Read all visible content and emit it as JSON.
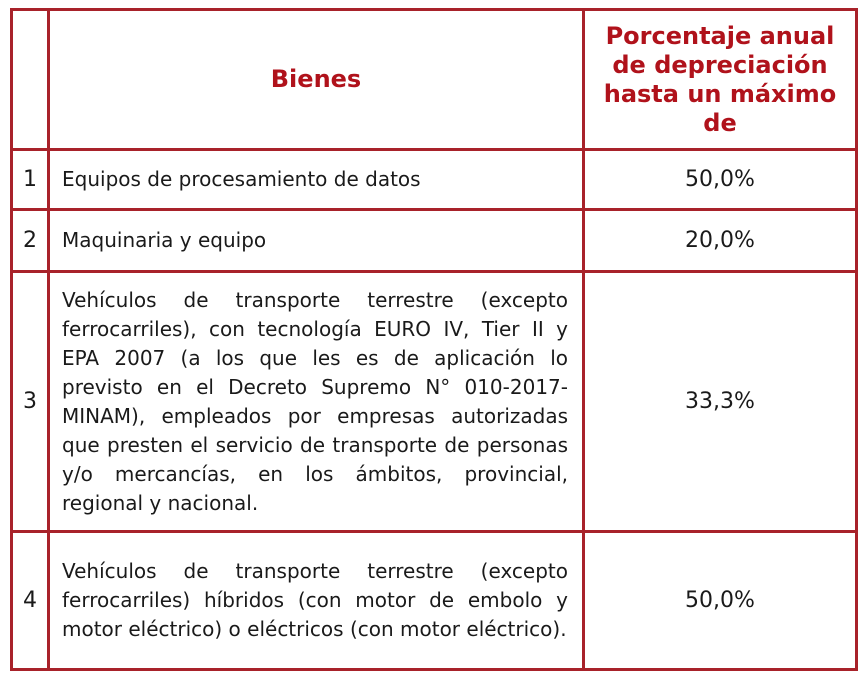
{
  "header": {
    "col_goods": "Bienes",
    "col_percent": "Porcentaje anual de depreciación hasta un máximo de"
  },
  "rows": [
    {
      "num": "1",
      "description": "Equipos de procesamiento de datos",
      "percent": "50,0%"
    },
    {
      "num": "2",
      "description": "Maquinaria y equipo",
      "percent": "20,0%"
    },
    {
      "num": "3",
      "description": "Vehículos de transporte terrestre (excepto ferrocarriles), con tecnología EURO IV, Tier II y EPA 2007 (a los que les es de aplicación lo previsto en el Decreto Supremo N° 010-2017-MINAM), empleados por empresas autorizadas que presten el servicio de transporte de personas y/o mercancías, en los ámbitos, provincial, regional y nacional.",
      "percent": "33,3%"
    },
    {
      "num": "4",
      "description": "Vehículos de transporte terrestre (excepto ferrocarriles) híbridos (con motor de embolo y motor eléctrico) o eléctricos (con motor eléctrico).",
      "percent": "50,0%"
    }
  ],
  "colors": {
    "border": "#a8222a",
    "header_text": "#b0121b"
  }
}
